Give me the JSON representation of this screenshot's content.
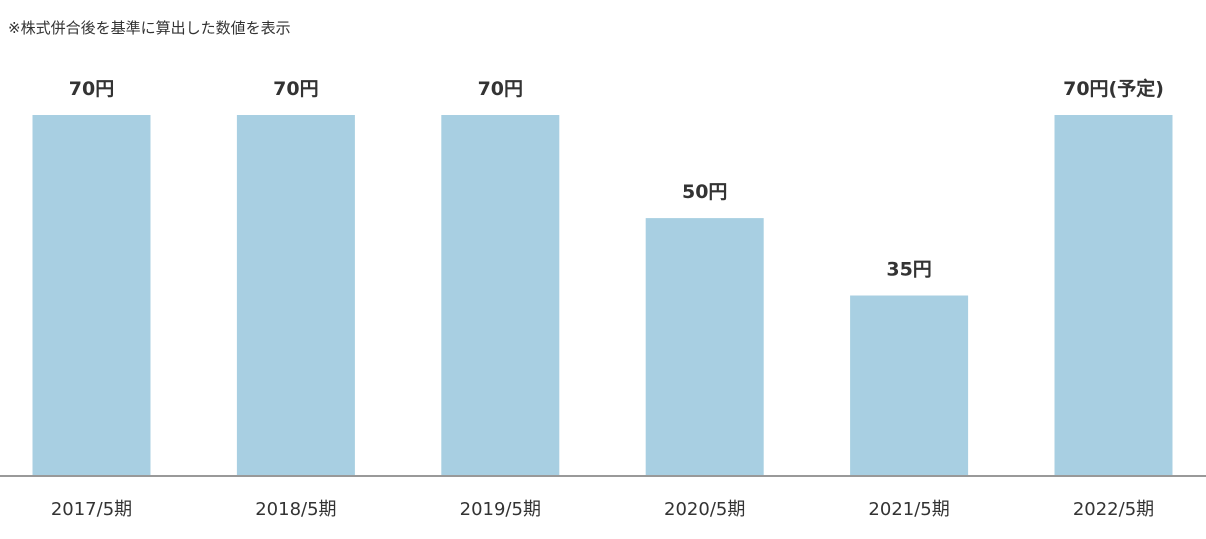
{
  "note": "※株式併合後を基準に算出した数値を表示",
  "chart_data": {
    "type": "bar",
    "categories": [
      "2017/5期",
      "2018/5期",
      "2019/5期",
      "2020/5期",
      "2021/5期",
      "2022/5期"
    ],
    "values": [
      70,
      70,
      70,
      50,
      35,
      70
    ],
    "data_labels": [
      "70円",
      "70円",
      "70円",
      "50円",
      "35円",
      "70円(予定)"
    ],
    "title": "",
    "xlabel": "",
    "ylabel": "",
    "ylim": [
      0,
      70
    ],
    "grid": false,
    "bar_color": "#a8cfe2",
    "axis_color": "#999999"
  }
}
